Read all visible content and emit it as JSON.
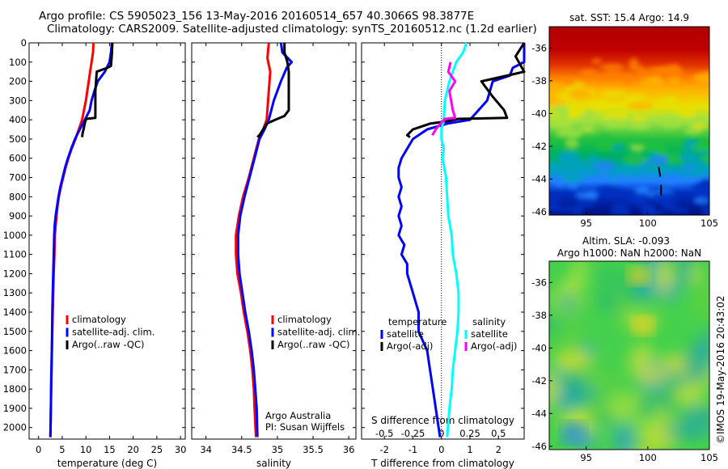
{
  "header": {
    "title_line1": "Argo profile: CS 5905023_156 13-May-2016 20160514_657 40.3066S 98.3877E",
    "title_line2": "Climatology: CARS2009. Satellite-adjusted climatology: synTS_20160512.nc (1.2d earlier)"
  },
  "colors": {
    "climatology": "#ff0000",
    "satellite": "#0000ff",
    "argo": "#000000",
    "salinity_satellite": "#00ffff",
    "salinity_argo": "#ff00ff"
  },
  "depth_axis": {
    "ticks": [
      0,
      100,
      200,
      300,
      400,
      500,
      600,
      700,
      800,
      900,
      1000,
      1100,
      1200,
      1300,
      1400,
      1500,
      1600,
      1700,
      1800,
      1900,
      2000
    ],
    "range": [
      0,
      2060
    ],
    "reversed": true
  },
  "chart_data": [
    {
      "type": "line",
      "xlabel": "temperature (deg C)",
      "xlim": [
        -2,
        31
      ],
      "xticks": [
        0,
        5,
        10,
        15,
        20,
        25,
        30
      ],
      "legend": [
        "climatology",
        "satellite-adj. clim.",
        "Argo(..raw -QC)"
      ],
      "series": [
        {
          "name": "climatology",
          "points": [
            [
              11.6,
              0
            ],
            [
              11.5,
              50
            ],
            [
              11.2,
              100
            ],
            [
              10.9,
              150
            ],
            [
              10.6,
              200
            ],
            [
              10.3,
              250
            ],
            [
              10.0,
              300
            ],
            [
              9.6,
              350
            ],
            [
              9.2,
              400
            ],
            [
              8.5,
              450
            ],
            [
              7.8,
              500
            ],
            [
              7.0,
              550
            ],
            [
              6.3,
              600
            ],
            [
              5.7,
              650
            ],
            [
              5.2,
              700
            ],
            [
              4.7,
              750
            ],
            [
              4.3,
              800
            ],
            [
              4.0,
              850
            ],
            [
              3.8,
              900
            ],
            [
              3.6,
              950
            ],
            [
              3.45,
              1000
            ],
            [
              3.35,
              1100
            ],
            [
              3.2,
              1200
            ],
            [
              3.1,
              1300
            ],
            [
              3.0,
              1400
            ],
            [
              2.9,
              1500
            ],
            [
              2.8,
              1600
            ],
            [
              2.75,
              1700
            ],
            [
              2.65,
              1800
            ],
            [
              2.6,
              1900
            ],
            [
              2.5,
              2050
            ]
          ]
        },
        {
          "name": "satellite-adj. clim.",
          "points": [
            [
              15.5,
              0
            ],
            [
              15.3,
              50
            ],
            [
              15.0,
              100
            ],
            [
              14.0,
              150
            ],
            [
              12.5,
              200
            ],
            [
              11.8,
              250
            ],
            [
              11.2,
              300
            ],
            [
              10.8,
              350
            ],
            [
              9.8,
              400
            ],
            [
              8.7,
              450
            ],
            [
              7.7,
              500
            ],
            [
              6.9,
              550
            ],
            [
              6.2,
              600
            ],
            [
              5.6,
              650
            ],
            [
              5.1,
              700
            ],
            [
              4.6,
              750
            ],
            [
              4.2,
              800
            ],
            [
              3.9,
              850
            ],
            [
              3.6,
              900
            ],
            [
              3.4,
              950
            ],
            [
              3.3,
              1000
            ],
            [
              3.2,
              1100
            ],
            [
              3.1,
              1200
            ],
            [
              3.0,
              1300
            ],
            [
              2.9,
              1400
            ],
            [
              2.85,
              1500
            ],
            [
              2.8,
              1600
            ],
            [
              2.7,
              1700
            ],
            [
              2.65,
              1800
            ],
            [
              2.6,
              1900
            ],
            [
              2.5,
              2050
            ]
          ]
        },
        {
          "name": "Argo(..raw -QC)",
          "points": [
            [
              15.6,
              0
            ],
            [
              15.5,
              60
            ],
            [
              15.3,
              120
            ],
            [
              14.5,
              130
            ],
            [
              12.3,
              150
            ],
            [
              12.0,
              250
            ],
            [
              12.0,
              390
            ],
            [
              10.1,
              395
            ],
            [
              9.9,
              405
            ],
            [
              9.8,
              415
            ],
            [
              9.5,
              450
            ],
            [
              9.3,
              470
            ],
            [
              9.2,
              490
            ]
          ]
        }
      ]
    },
    {
      "type": "line",
      "xlabel": "salinity",
      "xlim": [
        33.8,
        36.1
      ],
      "xticks": [
        34,
        34.5,
        35,
        35.5,
        36
      ],
      "tick_labels": [
        "34",
        "34.5",
        "35",
        "35.5",
        "36"
      ],
      "legend": [
        "climatology",
        "satellite-adj. clim.",
        "Argo(..raw -QC)"
      ],
      "annotation": [
        "Argo Australia",
        "PI: Susan Wijffels"
      ],
      "series": [
        {
          "name": "climatology",
          "points": [
            [
              34.88,
              0
            ],
            [
              34.86,
              80
            ],
            [
              34.9,
              150
            ],
            [
              34.88,
              250
            ],
            [
              34.87,
              300
            ],
            [
              34.85,
              400
            ],
            [
              34.8,
              450
            ],
            [
              34.74,
              500
            ],
            [
              34.67,
              600
            ],
            [
              34.6,
              700
            ],
            [
              34.52,
              800
            ],
            [
              34.46,
              900
            ],
            [
              34.42,
              1000
            ],
            [
              34.42,
              1100
            ],
            [
              34.44,
              1200
            ],
            [
              34.49,
              1300
            ],
            [
              34.53,
              1400
            ],
            [
              34.58,
              1500
            ],
            [
              34.62,
              1600
            ],
            [
              34.65,
              1700
            ],
            [
              34.67,
              1800
            ],
            [
              34.68,
              1900
            ],
            [
              34.7,
              2050
            ]
          ]
        },
        {
          "name": "satellite-adj. clim.",
          "points": [
            [
              35.05,
              0
            ],
            [
              35.07,
              50
            ],
            [
              35.2,
              100
            ],
            [
              35.13,
              130
            ],
            [
              35.05,
              200
            ],
            [
              34.95,
              300
            ],
            [
              34.88,
              400
            ],
            [
              34.82,
              450
            ],
            [
              34.75,
              500
            ],
            [
              34.68,
              600
            ],
            [
              34.61,
              700
            ],
            [
              34.54,
              800
            ],
            [
              34.48,
              900
            ],
            [
              34.45,
              1000
            ],
            [
              34.45,
              1100
            ],
            [
              34.47,
              1200
            ],
            [
              34.51,
              1300
            ],
            [
              34.55,
              1400
            ],
            [
              34.6,
              1500
            ],
            [
              34.64,
              1600
            ],
            [
              34.67,
              1700
            ],
            [
              34.69,
              1800
            ],
            [
              34.71,
              1900
            ],
            [
              34.72,
              2050
            ]
          ]
        },
        {
          "name": "Argo(..raw -QC)",
          "points": [
            [
              35.1,
              0
            ],
            [
              35.1,
              50
            ],
            [
              35.14,
              100
            ],
            [
              35.16,
              150
            ],
            [
              35.16,
              250
            ],
            [
              35.16,
              350
            ],
            [
              35.1,
              380
            ],
            [
              34.97,
              400
            ],
            [
              34.85,
              420
            ],
            [
              34.8,
              450
            ],
            [
              34.75,
              480
            ],
            [
              34.72,
              490
            ]
          ]
        }
      ]
    },
    {
      "type": "line",
      "xlabel": "T difference from climatology",
      "xlim": [
        -2.8,
        2.9
      ],
      "xticks": [
        -2,
        -1,
        0,
        1,
        2
      ],
      "top_xlabel": "S difference from climatology",
      "top_xlim": [
        -0.7,
        0.725
      ],
      "top_xticks": [
        -0.5,
        -0.25,
        0,
        0.25,
        0.5
      ],
      "top_tick_labels": [
        "-0.5",
        "-0.25",
        "0",
        "0.25",
        "0.5"
      ],
      "legend_titles": [
        "temperature",
        "salinity"
      ],
      "legend": [
        "satellite",
        "Argo(-adj)",
        "satellite",
        "Argo(-adj)"
      ],
      "zero_line": 0,
      "series": [
        {
          "name": "temperature satellite",
          "points": [
            [
              3.9,
              0
            ],
            [
              3.5,
              50
            ],
            [
              3.7,
              100
            ],
            [
              2.5,
              130
            ],
            [
              2.4,
              170
            ],
            [
              1.8,
              200
            ],
            [
              1.7,
              250
            ],
            [
              1.6,
              300
            ],
            [
              1.0,
              400
            ],
            [
              0.2,
              420
            ],
            [
              -0.5,
              450
            ],
            [
              -1.0,
              500
            ],
            [
              -1.2,
              550
            ],
            [
              -1.4,
              600
            ],
            [
              -1.5,
              650
            ],
            [
              -1.5,
              700
            ],
            [
              -1.4,
              750
            ],
            [
              -1.5,
              800
            ],
            [
              -1.4,
              850
            ],
            [
              -1.5,
              900
            ],
            [
              -1.4,
              950
            ],
            [
              -1.5,
              1000
            ],
            [
              -1.3,
              1050
            ],
            [
              -1.4,
              1100
            ],
            [
              -1.2,
              1150
            ],
            [
              -1.2,
              1200
            ],
            [
              -1.0,
              1300
            ],
            [
              -0.8,
              1400
            ],
            [
              -0.8,
              1500
            ],
            [
              -0.5,
              1600
            ],
            [
              -0.4,
              1700
            ],
            [
              -0.3,
              1800
            ],
            [
              -0.2,
              1900
            ],
            [
              -0.05,
              2050
            ]
          ]
        },
        {
          "name": "temperature Argo(-adj)",
          "points": [
            [
              2.9,
              0
            ],
            [
              2.6,
              70
            ],
            [
              2.9,
              150
            ],
            [
              2.6,
              160
            ],
            [
              1.4,
              200
            ],
            [
              1.8,
              280
            ],
            [
              2.2,
              350
            ],
            [
              2.3,
              390
            ],
            [
              0.6,
              395
            ],
            [
              0.3,
              405
            ],
            [
              0.1,
              410
            ],
            [
              -0.4,
              420
            ],
            [
              -0.8,
              440
            ],
            [
              -1.0,
              450
            ],
            [
              -1.2,
              480
            ],
            [
              -1.1,
              490
            ]
          ]
        },
        {
          "name": "salinity satellite",
          "points": [
            [
              0.22,
              0
            ],
            [
              0.19,
              50
            ],
            [
              0.13,
              100
            ],
            [
              0.07,
              200
            ],
            [
              0.03,
              300
            ],
            [
              0.02,
              400
            ],
            [
              0.0,
              450
            ],
            [
              0.0,
              500
            ],
            [
              0.02,
              550
            ],
            [
              0.01,
              600
            ],
            [
              0.04,
              700
            ],
            [
              0.05,
              800
            ],
            [
              0.06,
              900
            ],
            [
              0.09,
              1000
            ],
            [
              0.1,
              1100
            ],
            [
              0.13,
              1200
            ],
            [
              0.15,
              1300
            ],
            [
              0.15,
              1400
            ],
            [
              0.14,
              1500
            ],
            [
              0.12,
              1600
            ],
            [
              0.1,
              1700
            ],
            [
              0.09,
              1800
            ],
            [
              0.07,
              1900
            ],
            [
              0.05,
              2050
            ]
          ]
        },
        {
          "name": "salinity Argo(-adj)",
          "points": [
            [
              0.08,
              100
            ],
            [
              0.06,
              150
            ],
            [
              0.12,
              200
            ],
            [
              0.07,
              250
            ],
            [
              0.1,
              350
            ],
            [
              0.12,
              390
            ],
            [
              0.03,
              395
            ],
            [
              -0.01,
              420
            ],
            [
              -0.05,
              450
            ],
            [
              -0.08,
              480
            ]
          ]
        }
      ]
    },
    {
      "type": "heatmap",
      "title": "sat. SST: 15.4  Argo: 14.9",
      "xlim": [
        92,
        105
      ],
      "ylim": [
        -46.2,
        -34.7
      ],
      "xticks": [
        95,
        100,
        105
      ],
      "yticks": [
        -36,
        -38,
        -40,
        -42,
        -44,
        -46
      ],
      "argo_position": [
        98.3877,
        -40.3066
      ]
    },
    {
      "type": "heatmap",
      "title": "Altim. SLA: -0.093",
      "subtitle": "Argo h1000: NaN h2000: NaN",
      "xlim": [
        92,
        105
      ],
      "ylim": [
        -46.2,
        -34.7
      ],
      "xticks": [
        95,
        100,
        105
      ],
      "yticks": [
        -36,
        -38,
        -40,
        -42,
        -44,
        -46
      ]
    }
  ],
  "footer": {
    "timestamp": "©IMOS 19-May-2016 20:43:02"
  }
}
